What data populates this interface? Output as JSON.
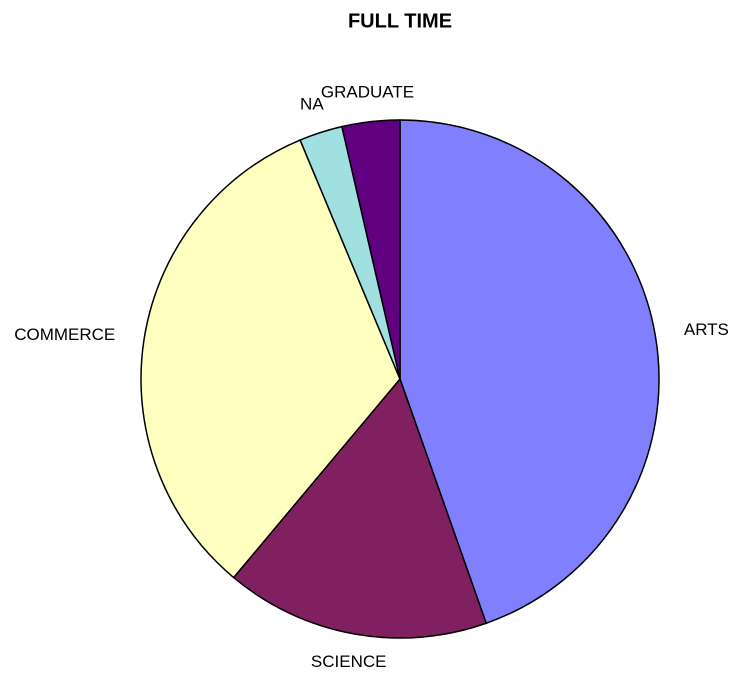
{
  "chart_data": {
    "type": "pie",
    "title": "FULL TIME",
    "categories": [
      "ARTS",
      "SCIENCE",
      "COMMERCE",
      "NA",
      "GRADUATE"
    ],
    "values": [
      44.6,
      16.5,
      32.6,
      2.7,
      3.6
    ],
    "colors": [
      "#8080ff",
      "#802060",
      "#ffffc0",
      "#a0e0e0",
      "#600080"
    ]
  }
}
